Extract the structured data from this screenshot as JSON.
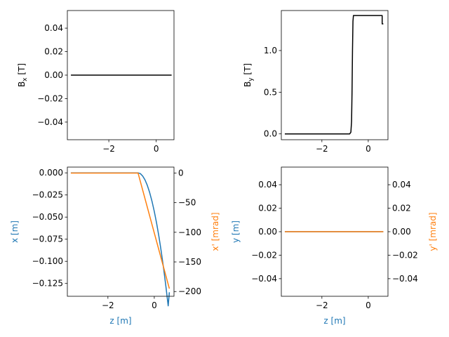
{
  "colors": {
    "black": "#000000",
    "blue": "#1f77b4",
    "orange": "#ff7f0e"
  },
  "chart_data": [
    {
      "id": "bx",
      "type": "line",
      "xlabel": "",
      "ylabel": "Bx [T]",
      "ylabel_main": "B",
      "ylabel_sub": "x",
      "ylabel_tail": " [T]",
      "xlim": [
        -3.75,
        0.75
      ],
      "ylim": [
        -0.055,
        0.055
      ],
      "xticks": [
        -2,
        0
      ],
      "xtick_labels": [
        "−2",
        "0"
      ],
      "yticks": [
        -0.04,
        -0.02,
        0.0,
        0.02,
        0.04
      ],
      "ytick_labels": [
        "−0.04",
        "−0.02",
        "0.00",
        "0.02",
        "0.04"
      ],
      "series": [
        {
          "color": "#000000",
          "x": [
            -3.6,
            0.65
          ],
          "y": [
            0,
            0
          ]
        }
      ]
    },
    {
      "id": "by",
      "type": "line",
      "xlabel": "",
      "ylabel": "By [T]",
      "ylabel_main": "B",
      "ylabel_sub": "y",
      "ylabel_tail": " [T]",
      "xlim": [
        -3.75,
        0.85
      ],
      "ylim": [
        -0.07,
        1.48
      ],
      "xticks": [
        -2,
        0
      ],
      "xtick_labels": [
        "−2",
        "0"
      ],
      "yticks": [
        0.0,
        0.5,
        1.0
      ],
      "ytick_labels": [
        "0.0",
        "0.5",
        "1.0"
      ],
      "series": [
        {
          "color": "#000000",
          "x": [
            -3.6,
            -0.8,
            -0.75,
            -0.72,
            -0.7,
            -0.68,
            -0.66,
            -0.64,
            0.6,
            0.6,
            0.65
          ],
          "y": [
            0,
            0,
            0.02,
            0.15,
            0.5,
            1.0,
            1.35,
            1.42,
            1.42,
            1.32,
            1.32
          ]
        }
      ]
    },
    {
      "id": "x",
      "type": "line",
      "xlabel": "z [m]",
      "ylabel": "x [m]",
      "ylabel_right": "x' [mrad]",
      "xlim": [
        -3.75,
        0.85
      ],
      "ylim": [
        -0.1395,
        0.0065
      ],
      "ylim_right": [
        -208,
        10
      ],
      "xticks": [
        -2,
        0
      ],
      "xtick_labels": [
        "−2",
        "0"
      ],
      "yticks": [
        0.0,
        -0.025,
        -0.05,
        -0.075,
        -0.1,
        -0.125
      ],
      "ytick_labels": [
        "0.000",
        "−0.025",
        "−0.050",
        "−0.075",
        "−0.100",
        "−0.125"
      ],
      "yticks_right": [
        0,
        -50,
        -100,
        -150,
        -200
      ],
      "ytick_labels_right": [
        "0",
        "−50",
        "−100",
        "−150",
        "−200"
      ],
      "series": [
        {
          "color": "#1f77b4",
          "axis": "left",
          "x": [
            -3.6,
            -0.7,
            -0.6,
            -0.5,
            -0.4,
            -0.3,
            -0.2,
            -0.1,
            0.0,
            0.1,
            0.2,
            0.3,
            0.4,
            0.5,
            0.6,
            0.65
          ],
          "y": [
            0,
            0,
            -0.0009,
            -0.0036,
            -0.008,
            -0.0142,
            -0.0222,
            -0.032,
            -0.0436,
            -0.0569,
            -0.072,
            -0.0889,
            -0.1076,
            -0.1281,
            -0.1503,
            -0.135
          ]
        },
        {
          "color": "#ff7f0e",
          "axis": "right",
          "x": [
            -3.6,
            -0.7,
            0.65
          ],
          "y": [
            0,
            0,
            -195
          ]
        }
      ]
    },
    {
      "id": "y",
      "type": "line",
      "xlabel": "z [m]",
      "ylabel": "y [m]",
      "ylabel_right": "y' [mrad]",
      "xlim": [
        -3.75,
        0.85
      ],
      "ylim": [
        -0.055,
        0.055
      ],
      "ylim_right": [
        -0.055,
        0.055
      ],
      "xticks": [
        -2,
        0
      ],
      "xtick_labels": [
        "−2",
        "0"
      ],
      "yticks": [
        -0.04,
        -0.02,
        0.0,
        0.02,
        0.04
      ],
      "ytick_labels": [
        "−0.04",
        "−0.02",
        "0.00",
        "0.02",
        "0.04"
      ],
      "yticks_right": [
        -0.04,
        -0.02,
        0.0,
        0.02,
        0.04
      ],
      "ytick_labels_right": [
        "−0.04",
        "−0.02",
        "0.00",
        "0.02",
        "0.04"
      ],
      "series": [
        {
          "color": "#1f77b4",
          "axis": "left",
          "x": [
            -3.6,
            0.65
          ],
          "y": [
            0,
            0
          ]
        },
        {
          "color": "#ff7f0e",
          "axis": "right",
          "x": [
            -3.6,
            0.65
          ],
          "y": [
            0,
            0
          ]
        }
      ]
    }
  ]
}
